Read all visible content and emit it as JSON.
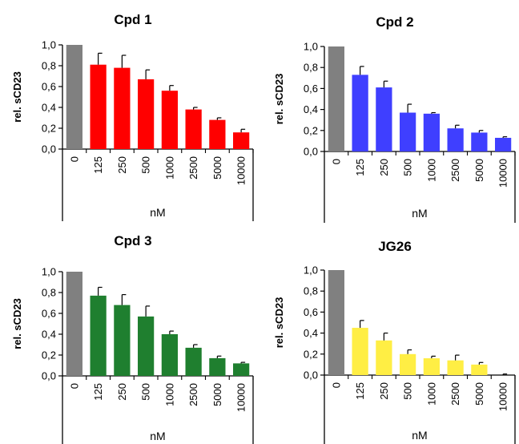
{
  "chart_data": [
    {
      "type": "bar",
      "title": "Cpd 1",
      "xlabel": "nM",
      "ylabel": "rel. sCD23",
      "ylim": [
        0,
        1.0
      ],
      "yticks": [
        "0,0",
        "0,2",
        "0,4",
        "0,6",
        "0,8",
        "1,0"
      ],
      "categories": [
        "0",
        "125",
        "250",
        "500",
        "1000",
        "2500",
        "5000",
        "10000"
      ],
      "values": [
        1.0,
        0.81,
        0.78,
        0.67,
        0.56,
        0.38,
        0.28,
        0.16
      ],
      "errors": [
        0.0,
        0.11,
        0.12,
        0.09,
        0.05,
        0.02,
        0.02,
        0.03
      ],
      "colors": [
        "#808080",
        "#ff0000",
        "#ff0000",
        "#ff0000",
        "#ff0000",
        "#ff0000",
        "#ff0000",
        "#ff0000"
      ]
    },
    {
      "type": "bar",
      "title": "Cpd 2",
      "xlabel": "nM",
      "ylabel": "rel. sCD23",
      "ylim": [
        0,
        1.0
      ],
      "yticks": [
        "0,0",
        "0,2",
        "0,4",
        "0,6",
        "0,8",
        "1,0"
      ],
      "categories": [
        "0",
        "125",
        "250",
        "500",
        "1000",
        "2500",
        "5000",
        "10000"
      ],
      "values": [
        1.0,
        0.73,
        0.61,
        0.37,
        0.36,
        0.22,
        0.18,
        0.13
      ],
      "errors": [
        0.0,
        0.08,
        0.06,
        0.08,
        0.01,
        0.03,
        0.02,
        0.01
      ],
      "colors": [
        "#808080",
        "#3f3fff",
        "#3f3fff",
        "#3f3fff",
        "#3f3fff",
        "#3f3fff",
        "#3f3fff",
        "#3f3fff"
      ]
    },
    {
      "type": "bar",
      "title": "Cpd 3",
      "xlabel": "nM",
      "ylabel": "rel. sCD23",
      "ylim": [
        0,
        1.0
      ],
      "yticks": [
        "0,0",
        "0,2",
        "0,4",
        "0,6",
        "0,8",
        "1,0"
      ],
      "categories": [
        "0",
        "125",
        "250",
        "500",
        "1000",
        "2500",
        "5000",
        "10000"
      ],
      "values": [
        1.0,
        0.77,
        0.68,
        0.57,
        0.4,
        0.27,
        0.17,
        0.12
      ],
      "errors": [
        0.0,
        0.08,
        0.1,
        0.1,
        0.03,
        0.03,
        0.02,
        0.01
      ],
      "colors": [
        "#808080",
        "#1f7f2f",
        "#1f7f2f",
        "#1f7f2f",
        "#1f7f2f",
        "#1f7f2f",
        "#1f7f2f",
        "#1f7f2f"
      ]
    },
    {
      "type": "bar",
      "title": "JG26",
      "xlabel": "nM",
      "ylabel": "rel. sCD23",
      "ylim": [
        0,
        1.0
      ],
      "yticks": [
        "0,0",
        "0,2",
        "0,4",
        "0,6",
        "0,8",
        "1,0"
      ],
      "categories": [
        "0",
        "125",
        "250",
        "500",
        "1000",
        "2500",
        "5000",
        "10000"
      ],
      "values": [
        1.0,
        0.45,
        0.33,
        0.2,
        0.16,
        0.14,
        0.1,
        0.0
      ],
      "errors": [
        0.0,
        0.07,
        0.07,
        0.04,
        0.02,
        0.05,
        0.02,
        0.01
      ],
      "colors": [
        "#808080",
        "#ffee44",
        "#ffee44",
        "#ffee44",
        "#ffee44",
        "#ffee44",
        "#ffee44",
        "#ffee44"
      ]
    }
  ]
}
